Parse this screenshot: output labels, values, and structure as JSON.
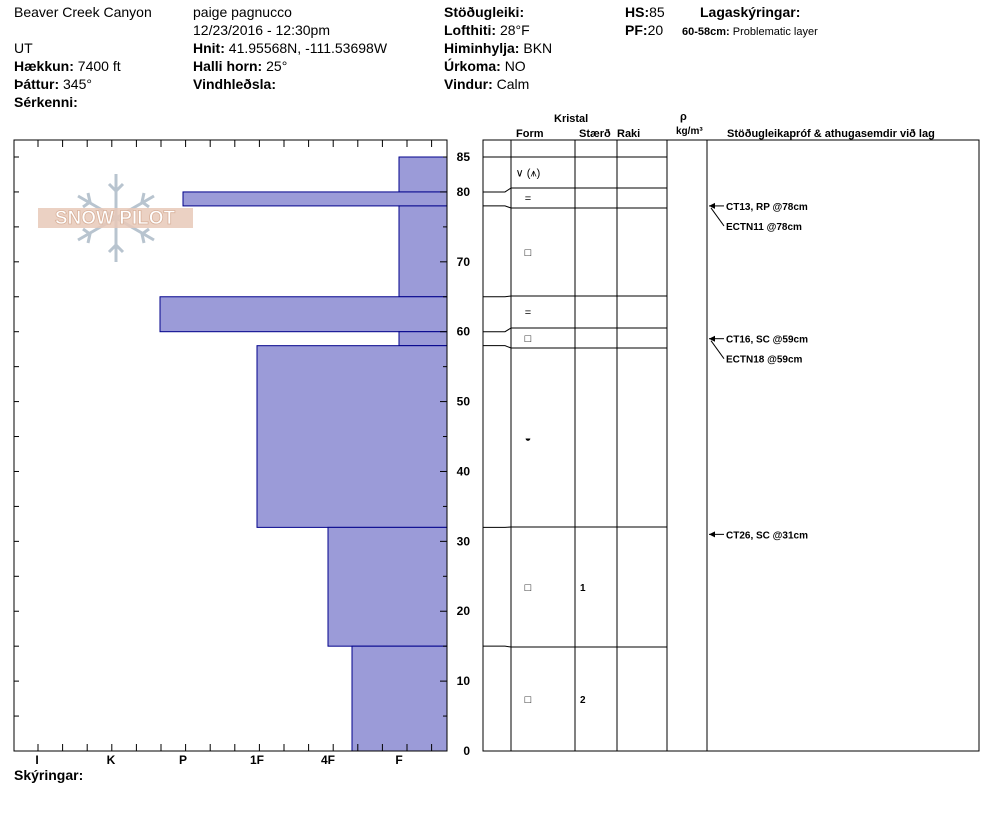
{
  "header": {
    "location": "Beaver Creek Canyon",
    "state": "UT",
    "elevation_label": "Hækkun:",
    "elevation": "7400 ft",
    "aspect_label": "Þáttur:",
    "aspect": "345°",
    "features_label": "Sérkenni:",
    "observer": "paige pagnucco",
    "datetime": "12/23/2016 - 12:30pm",
    "coords_label": "Hnit:",
    "coords": "41.95568N, -111.53698W",
    "slope_label": "Halli horn:",
    "slope": "25°",
    "wind_loading_label": "Vindhleðsla:",
    "stability_label": "Stöðugleiki:",
    "air_temp_label": "Lofthiti:",
    "air_temp": "28°F",
    "sky_label": "Himinhylja:",
    "sky": "BKN",
    "precip_label": "Úrkoma:",
    "precip": "NO",
    "wind_label": "Vindur:",
    "wind": "Calm",
    "hs_label": "HS:",
    "hs": "85",
    "pf_label": "PF:",
    "pf": "20",
    "legend_label": "Lagaskýringar:",
    "layer_note_range": "60-58cm:",
    "layer_note_text": "Problematic layer"
  },
  "logo_text": "SNOW PILOT",
  "columns": {
    "crystal": "Kristal",
    "form": "Form",
    "size": "Stærð",
    "moisture": "Raki",
    "density_symbol": "ρ",
    "density_unit": "kg/m³",
    "tests": "Stöðugleikapróf & athugasemdir við lag"
  },
  "footer_label": "Skýringar:",
  "stability_tests": [
    {
      "text": "CT13, RP @78cm",
      "depth": 78
    },
    {
      "text": "ECTN11 @78cm",
      "depth": 78
    },
    {
      "text": "CT16, SC @59cm",
      "depth": 59
    },
    {
      "text": "ECTN18 @59cm",
      "depth": 59
    },
    {
      "text": "CT26, SC @31cm",
      "depth": 31
    }
  ],
  "layers": [
    {
      "top": 85,
      "bottom": 80,
      "form": "∨ (⩚)",
      "size": ""
    },
    {
      "top": 80,
      "bottom": 78,
      "form": "=",
      "size": ""
    },
    {
      "top": 78,
      "bottom": 65,
      "form": "□",
      "size": ""
    },
    {
      "top": 65,
      "bottom": 60,
      "form": "=",
      "size": ""
    },
    {
      "top": 60,
      "bottom": 58,
      "form": "□",
      "size": ""
    },
    {
      "top": 58,
      "bottom": 32,
      "form": "◒",
      "size": ""
    },
    {
      "top": 32,
      "bottom": 15,
      "form": "□",
      "size": "1"
    },
    {
      "top": 15,
      "bottom": 0,
      "form": "□",
      "size": "2"
    }
  ],
  "chart_data": {
    "type": "bar",
    "orientation": "horizontal",
    "title": "",
    "xlabel": "",
    "ylabel": "",
    "x_categories": [
      "I",
      "K",
      "P",
      "1F",
      "4F",
      "F"
    ],
    "y_ticks": [
      0,
      10,
      20,
      30,
      40,
      50,
      60,
      70,
      80,
      85
    ],
    "ylim": [
      0,
      85
    ],
    "fill_color": "#9b9bd8",
    "edge_color": "#00008b",
    "hardness_profile": [
      {
        "top": 85,
        "bottom": 80,
        "hardness": "F"
      },
      {
        "top": 80,
        "bottom": 78,
        "hardness": "P+"
      },
      {
        "top": 78,
        "bottom": 65,
        "hardness": "F"
      },
      {
        "top": 65,
        "bottom": 60,
        "hardness": "K-P"
      },
      {
        "top": 60,
        "bottom": 58,
        "hardness": "F"
      },
      {
        "top": 58,
        "bottom": 32,
        "hardness": "1F"
      },
      {
        "top": 32,
        "bottom": 15,
        "hardness": "4F"
      },
      {
        "top": 15,
        "bottom": 0,
        "hardness": "4F-F"
      }
    ]
  }
}
